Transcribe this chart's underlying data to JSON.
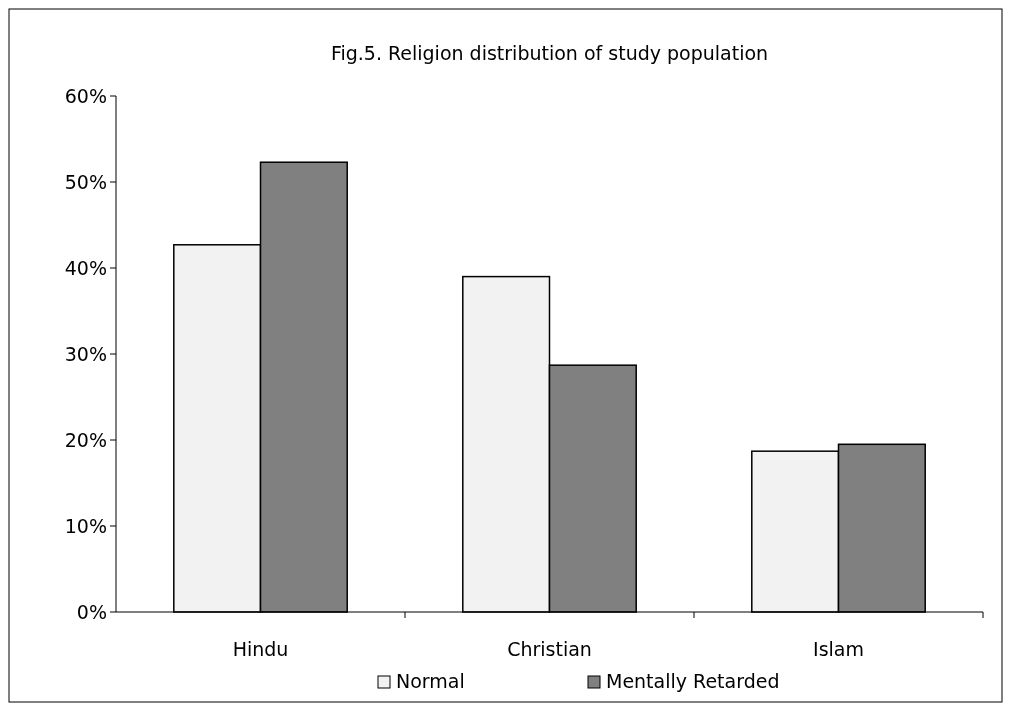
{
  "chart_data": {
    "type": "bar",
    "title": "Fig.5. Religion distribution of study population",
    "categories": [
      "Hindu",
      "Christian",
      "Islam"
    ],
    "series": [
      {
        "name": "Normal",
        "color": "#f2f2f2",
        "values": [
          42.7,
          39,
          18.7
        ]
      },
      {
        "name": "Mentally Retarded",
        "color": "#808080",
        "values": [
          52.3,
          28.7,
          19.5
        ]
      }
    ],
    "ylim": [
      0,
      60
    ],
    "yticks": [
      {
        "value": 0,
        "label": "0%"
      },
      {
        "value": 10,
        "label": "10%"
      },
      {
        "value": 20,
        "label": "20%"
      },
      {
        "value": 30,
        "label": "30%"
      },
      {
        "value": 40,
        "label": "40%"
      },
      {
        "value": 50,
        "label": "50%"
      },
      {
        "value": 60,
        "label": "60%"
      }
    ],
    "grid": false,
    "legend": "bottom"
  }
}
